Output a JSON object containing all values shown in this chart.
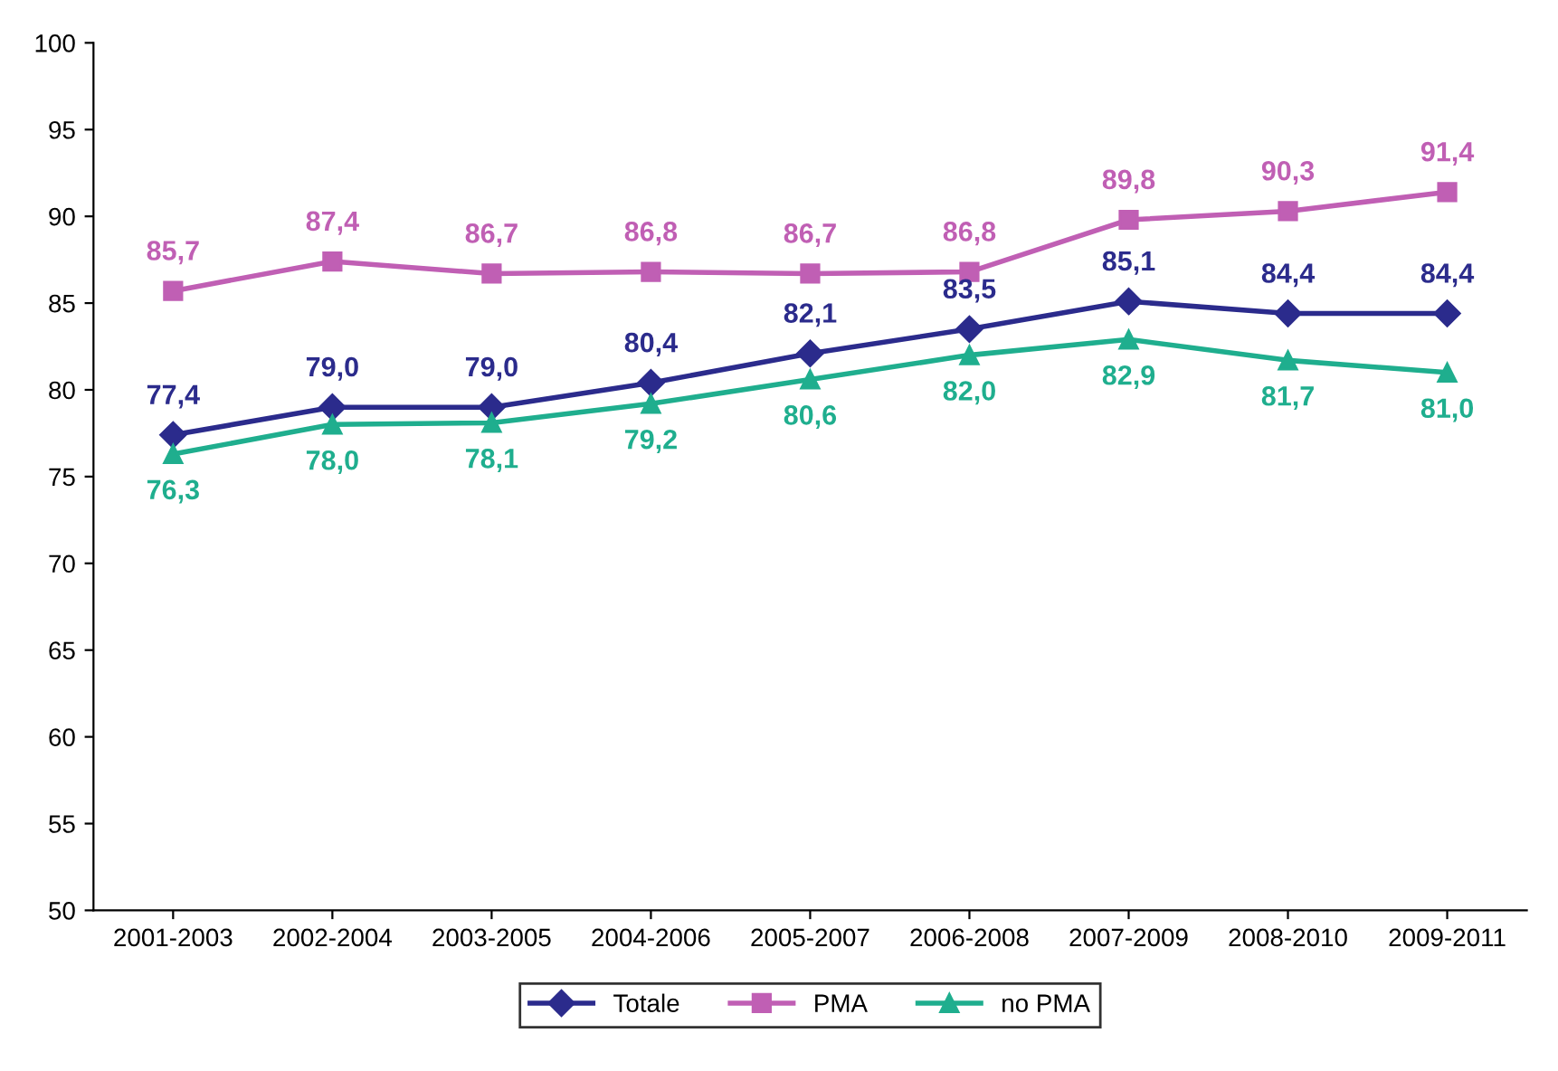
{
  "chart_data": {
    "type": "line",
    "categories": [
      "2001-2003",
      "2002-2004",
      "2003-2005",
      "2004-2006",
      "2005-2007",
      "2006-2008",
      "2007-2009",
      "2008-2010",
      "2009-2011"
    ],
    "series": [
      {
        "name": "Totale",
        "color": "#2b2b8c",
        "marker": "diamond",
        "values": [
          77.4,
          79.0,
          79.0,
          80.4,
          82.1,
          83.5,
          85.1,
          84.4,
          84.4
        ],
        "value_labels": [
          "77,4",
          "79,0",
          "79,0",
          "80,4",
          "82,1",
          "83,5",
          "85,1",
          "84,4",
          "84,4"
        ]
      },
      {
        "name": "PMA",
        "color": "#c05fb4",
        "marker": "square",
        "values": [
          85.7,
          87.4,
          86.7,
          86.8,
          86.7,
          86.8,
          89.8,
          90.3,
          91.4
        ],
        "value_labels": [
          "85,7",
          "87,4",
          "86,7",
          "86,8",
          "86,7",
          "86,8",
          "89,8",
          "90,3",
          "91,4"
        ]
      },
      {
        "name": "no PMA",
        "color": "#1fae8e",
        "marker": "triangle",
        "values": [
          76.3,
          78.0,
          78.1,
          79.2,
          80.6,
          82.0,
          82.9,
          81.7,
          81.0
        ],
        "value_labels": [
          "76,3",
          "78,0",
          "78,1",
          "79,2",
          "80,6",
          "82,0",
          "82,9",
          "81,7",
          "81,0"
        ]
      }
    ],
    "ylim": [
      50,
      100
    ],
    "yticks": [
      50,
      55,
      60,
      65,
      70,
      75,
      80,
      85,
      90,
      95,
      100
    ],
    "grid": false,
    "legend": "bottom",
    "line_style": "solid"
  }
}
